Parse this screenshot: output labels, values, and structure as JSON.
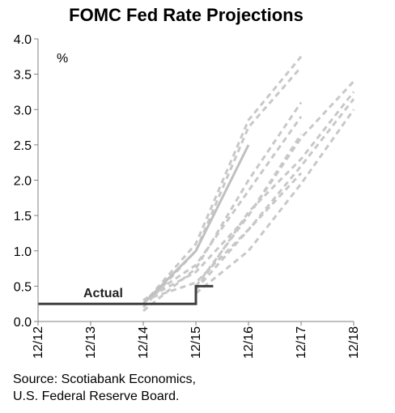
{
  "chart_data": {
    "type": "line",
    "title": "FOMC Fed Rate Projections",
    "unit_label": "%",
    "xlabel": "",
    "ylabel": "",
    "xlim": [
      2012.92,
      2018.92
    ],
    "ylim": [
      0,
      4
    ],
    "x_ticks": [
      2012.92,
      2013.92,
      2014.92,
      2015.92,
      2016.92,
      2017.92,
      2018.92
    ],
    "x_tick_labels": [
      "12/12",
      "12/13",
      "12/14",
      "12/15",
      "12/16",
      "12/17",
      "12/18"
    ],
    "y_ticks": [
      0,
      0.5,
      1,
      1.5,
      2,
      2.5,
      3,
      3.5,
      4
    ],
    "y_tick_labels": [
      "0.0",
      "0.5",
      "1.0",
      "1.5",
      "2.0",
      "2.5",
      "3.0",
      "3.5",
      "4.0"
    ],
    "grid": false,
    "annotation": "Actual",
    "actual": {
      "x": [
        2012.92,
        2015.92,
        2015.92,
        2016.25
      ],
      "y": [
        0.25,
        0.25,
        0.5,
        0.5
      ],
      "style": "step",
      "color": "#404040"
    },
    "highlight": {
      "x": [
        2014.92,
        2015.92,
        2016.92
      ],
      "y": [
        0.25,
        1.0,
        2.5
      ],
      "color": "#c0c0c0"
    },
    "projections": [
      {
        "x": [
          2014.92,
          2015.92,
          2016.92,
          2017.92
        ],
        "y": [
          0.25,
          1.1,
          2.85,
          3.75
        ]
      },
      {
        "x": [
          2014.92,
          2015.92,
          2016.92,
          2017.92
        ],
        "y": [
          0.2,
          1.0,
          2.75,
          3.6
        ]
      },
      {
        "x": [
          2014.92,
          2015.92,
          2016.92,
          2017.92
        ],
        "y": [
          0.15,
          0.75,
          2.0,
          3.1
        ]
      },
      {
        "x": [
          2014.92,
          2015.92,
          2016.92,
          2017.92
        ],
        "y": [
          0.3,
          0.8,
          1.85,
          2.9
        ]
      },
      {
        "x": [
          2014.92,
          2015.92,
          2016.92,
          2017.92
        ],
        "y": [
          0.3,
          0.7,
          1.5,
          2.65
        ]
      },
      {
        "x": [
          2014.92,
          2015.92,
          2016.92,
          2017.92
        ],
        "y": [
          0.3,
          0.55,
          1.3,
          2.1
        ]
      },
      {
        "x": [
          2015.92,
          2016.92,
          2017.92,
          2018.92
        ],
        "y": [
          0.5,
          1.5,
          2.6,
          3.4
        ]
      },
      {
        "x": [
          2015.92,
          2016.92,
          2017.92,
          2018.92
        ],
        "y": [
          0.45,
          1.55,
          2.3,
          3.25
        ]
      },
      {
        "x": [
          2015.92,
          2016.92,
          2017.92,
          2018.92
        ],
        "y": [
          0.45,
          1.3,
          2.2,
          3.15
        ]
      },
      {
        "x": [
          2015.92,
          2016.92,
          2017.92,
          2018.92
        ],
        "y": [
          0.4,
          1.0,
          1.95,
          3.0
        ]
      }
    ],
    "projection_color": "#c8c8c8"
  },
  "source": {
    "line1": "Source: Scotiabank Economics,",
    "line2": "U.S. Federal Reserve Board."
  }
}
